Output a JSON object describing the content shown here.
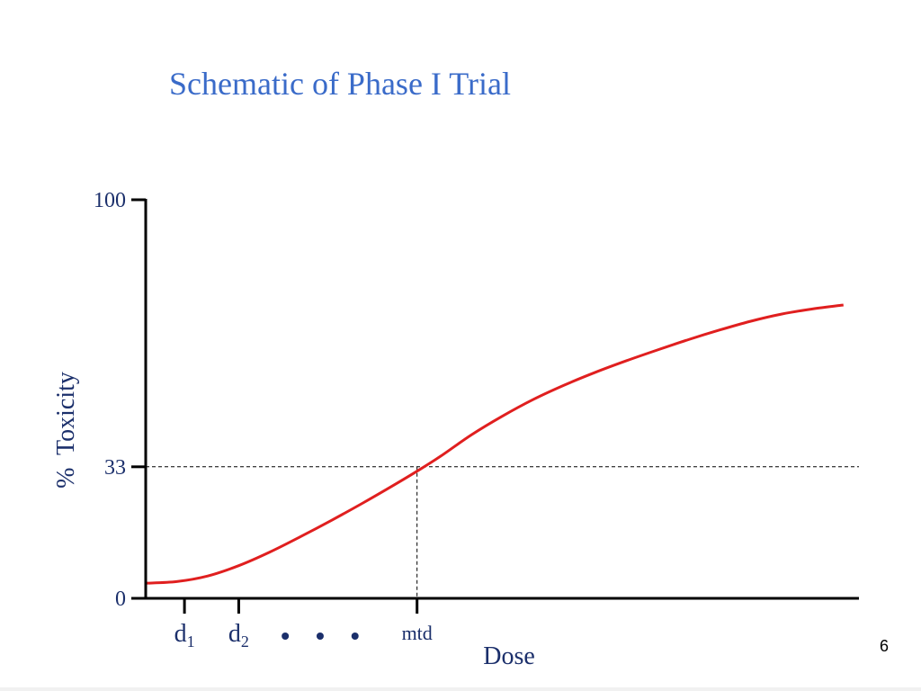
{
  "slide": {
    "title": "Schematic of Phase I Trial",
    "page_number": "6"
  },
  "colors": {
    "title": "#3a6bc9",
    "curve": "#e01f1f",
    "axis": "#000000",
    "label": "#1b2f6b"
  },
  "chart_data": {
    "type": "line",
    "title": "",
    "xlabel": "Dose",
    "ylabel": "%  Toxicity",
    "ylim": [
      0,
      100
    ],
    "y_ticks": [
      {
        "value": 0,
        "label": "0"
      },
      {
        "value": 33,
        "label": "33"
      },
      {
        "value": 100,
        "label": "100"
      }
    ],
    "x_ticks": [
      {
        "value": 0.5,
        "label": "d",
        "subscript": "1"
      },
      {
        "value": 1.2,
        "label": "d",
        "subscript": "2"
      },
      {
        "value": 3.5,
        "label": "mtd",
        "subscript": ""
      }
    ],
    "ellipsis_marks": [
      1.8,
      2.25,
      2.7
    ],
    "xlim": [
      0,
      9.2
    ],
    "series": [
      {
        "x": [
          0,
          0.4,
          0.8,
          1.2,
          1.6,
          2.0,
          2.4,
          2.8,
          3.2,
          3.5,
          3.8,
          4.2,
          4.6,
          5.0,
          5.4,
          5.8,
          6.2,
          6.6,
          7.0,
          7.4,
          7.8,
          8.2,
          8.6,
          9.0
        ],
        "y": [
          3.8,
          4.2,
          5.6,
          8.2,
          11.6,
          15.5,
          19.6,
          23.9,
          28.4,
          31.9,
          35.6,
          41.0,
          45.7,
          49.9,
          53.5,
          56.7,
          59.6,
          62.3,
          64.9,
          67.3,
          69.5,
          71.3,
          72.6,
          73.6
        ]
      }
    ],
    "reference": {
      "x": 3.5,
      "y": 33,
      "style": "dashed"
    },
    "grid": false,
    "legend": "none"
  }
}
